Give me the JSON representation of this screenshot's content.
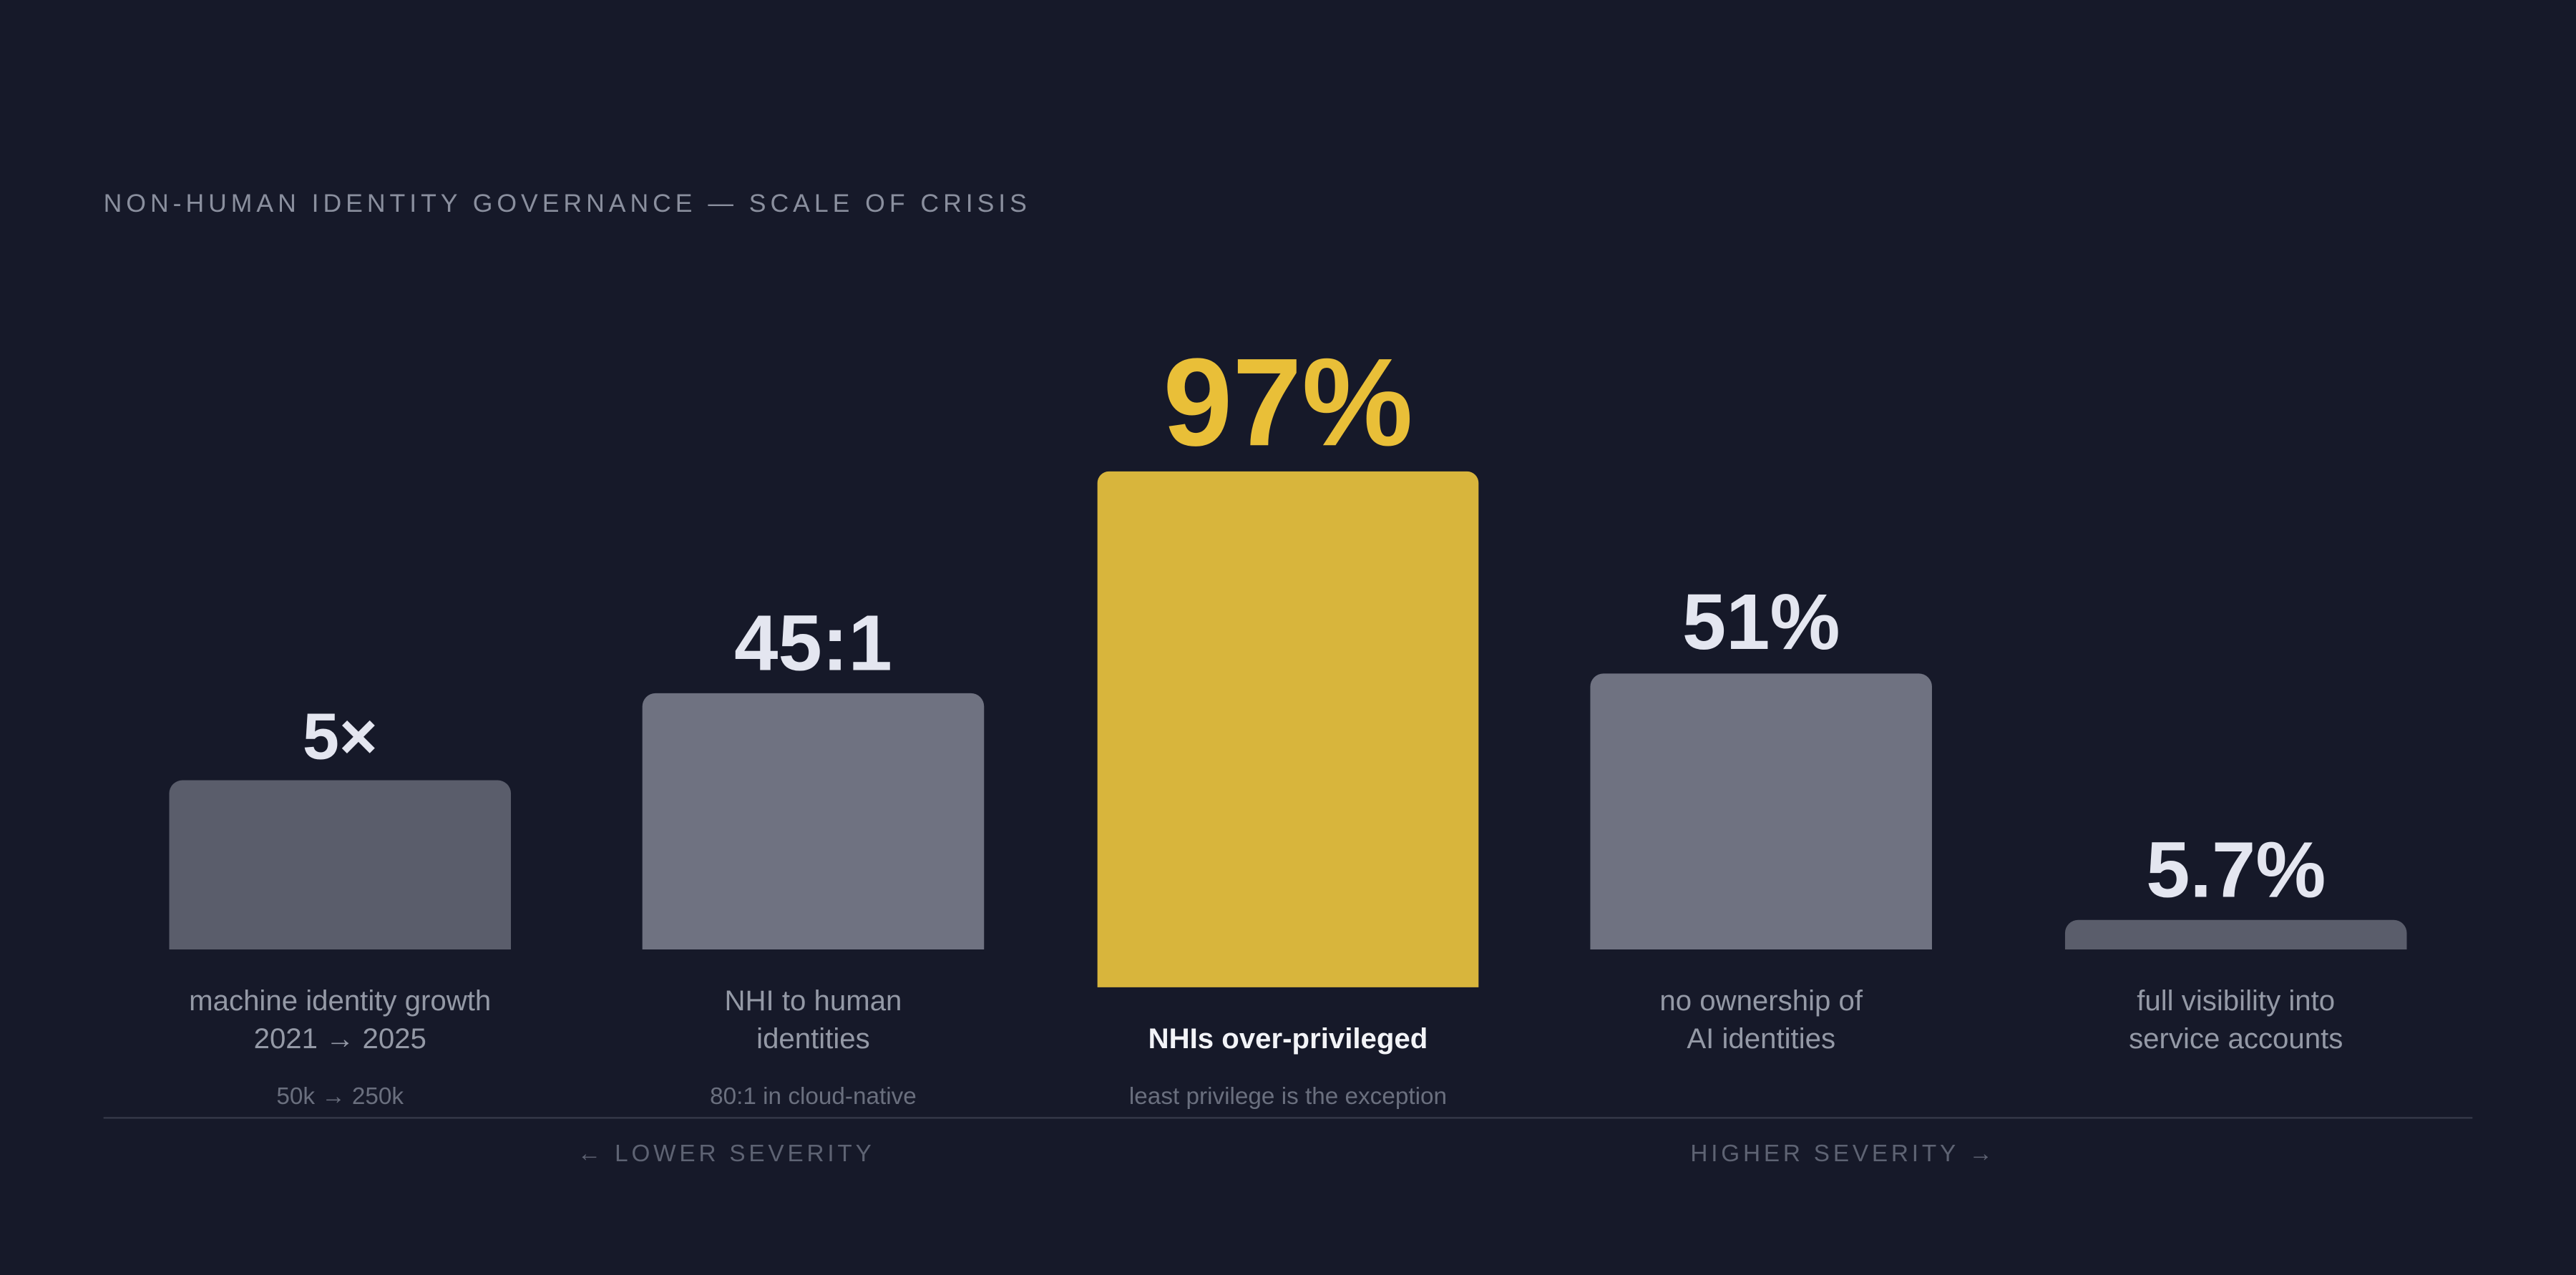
{
  "title": "NON-HUMAN IDENTITY GOVERNANCE — SCALE OF CRISIS",
  "chart_data": {
    "type": "bar",
    "title": "NON-HUMAN IDENTITY GOVERNANCE — SCALE OF CRISIS",
    "xlabel": "",
    "ylabel": "",
    "grid": false,
    "legend": "none",
    "categories": [
      "machine identity growth 2021 → 2025",
      "NHI to human identities",
      "NHIs over-privileged",
      "no ownership of AI identities",
      "full visibility into service accounts"
    ],
    "bars": [
      {
        "value_label": "5×",
        "label_lines": [
          "machine identity growth",
          "2021 → 2025"
        ],
        "sublabel": "50k → 250k",
        "level": 0.33,
        "highlight": false,
        "color": "#5a5d6b"
      },
      {
        "value_label": "45:1",
        "label_lines": [
          "NHI to human",
          "identities"
        ],
        "sublabel": "80:1 in cloud-native",
        "level": 0.5,
        "highlight": false,
        "color": "#6f7281"
      },
      {
        "value_label": "97%",
        "label_lines": [
          "NHIs over-privileged"
        ],
        "sublabel": "least privilege is the exception",
        "level": 1.0,
        "highlight": true,
        "color": "#d8b53c"
      },
      {
        "value_label": "51%",
        "label_lines": [
          "no ownership of",
          "AI identities"
        ],
        "sublabel": "",
        "level": 0.54,
        "highlight": false,
        "color": "#6f7281"
      },
      {
        "value_label": "5.7%",
        "label_lines": [
          "full visibility into",
          "service accounts"
        ],
        "sublabel": "",
        "level": 0.057,
        "highlight": false,
        "color": "#5a5d6b"
      }
    ],
    "value_color": "#e4e6f0",
    "highlight_value_color": "#e9bf38"
  },
  "axis_notes": {
    "lower": "← LOWER SEVERITY",
    "higher": "HIGHER SEVERITY →"
  }
}
